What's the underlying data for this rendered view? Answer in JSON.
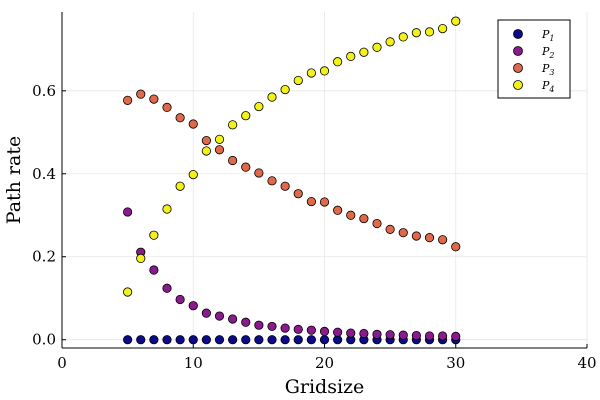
{
  "chart_data": {
    "type": "scatter",
    "title": "",
    "xlabel": "Gridsize",
    "ylabel": "Path rate",
    "xlim": [
      0,
      40
    ],
    "ylim": [
      -0.02,
      0.79
    ],
    "xticks": [
      0,
      10,
      20,
      30,
      40
    ],
    "yticks": [
      0.0,
      0.2,
      0.4,
      0.6
    ],
    "ytick_labels": [
      "0.0",
      "0.2",
      "0.4",
      "0.6"
    ],
    "grid": true,
    "legend_position": "top-right",
    "x": [
      5,
      6,
      7,
      8,
      9,
      10,
      11,
      12,
      13,
      14,
      15,
      16,
      17,
      18,
      19,
      20,
      21,
      22,
      23,
      24,
      25,
      26,
      27,
      28,
      29,
      30
    ],
    "series": [
      {
        "name": "P_1",
        "label_base": "P",
        "label_sub": "1",
        "color": "#0b0b8a",
        "values": [
          0,
          0,
          0,
          0,
          0,
          0,
          0,
          0,
          0,
          0,
          0,
          0,
          0,
          0,
          0,
          0,
          0,
          0,
          0,
          0,
          0,
          0,
          0,
          0,
          0,
          0
        ]
      },
      {
        "name": "P_2",
        "label_base": "P",
        "label_sub": "2",
        "color": "#8b1a8f",
        "values": [
          0.308,
          0.211,
          0.168,
          0.124,
          0.097,
          0.082,
          0.064,
          0.057,
          0.05,
          0.042,
          0.035,
          0.032,
          0.028,
          0.025,
          0.023,
          0.02,
          0.018,
          0.016,
          0.015,
          0.013,
          0.012,
          0.011,
          0.01,
          0.009,
          0.009,
          0.008
        ]
      },
      {
        "name": "P_3",
        "label_base": "P",
        "label_sub": "3",
        "color": "#e0694a",
        "values": [
          0.577,
          0.592,
          0.58,
          0.56,
          0.535,
          0.52,
          0.48,
          0.458,
          0.432,
          0.416,
          0.402,
          0.383,
          0.37,
          0.352,
          0.333,
          0.332,
          0.312,
          0.3,
          0.292,
          0.28,
          0.266,
          0.258,
          0.25,
          0.246,
          0.241,
          0.224
        ]
      },
      {
        "name": "P_4",
        "label_base": "P",
        "label_sub": "4",
        "color": "#f2f21a",
        "values": [
          0.115,
          0.196,
          0.252,
          0.315,
          0.37,
          0.398,
          0.455,
          0.483,
          0.518,
          0.54,
          0.562,
          0.585,
          0.603,
          0.625,
          0.643,
          0.648,
          0.67,
          0.683,
          0.693,
          0.705,
          0.718,
          0.73,
          0.74,
          0.742,
          0.75,
          0.768
        ]
      }
    ]
  }
}
